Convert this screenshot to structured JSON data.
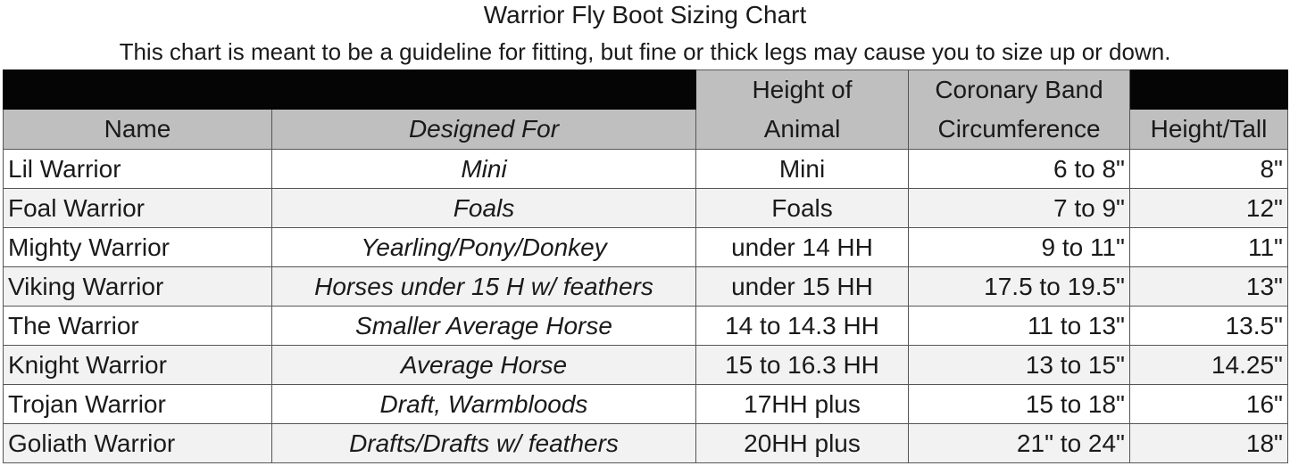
{
  "title": "Warrior Fly Boot Sizing Chart",
  "subtitle": "This chart is meant to be a guideline for fitting, but fine or thick legs may cause you to size up or down.",
  "colors": {
    "header_band": "#050505",
    "header_gray": "#bfbfbf",
    "alt_row": "#f2f2f2"
  },
  "headers": {
    "name": "Name",
    "designed_for": "Designed For",
    "height_of_animal_1": "Height of",
    "height_of_animal_2": "Animal",
    "coronary_1": "Coronary Band",
    "coronary_2": "Circumference",
    "height_tall": "Height/Tall"
  },
  "rows": [
    {
      "name": "Lil Warrior",
      "designed_for": "Mini",
      "animal_height": "Mini",
      "coronary": "6 to 8\"",
      "height": "8\""
    },
    {
      "name": "Foal Warrior",
      "designed_for": "Foals",
      "animal_height": "Foals",
      "coronary": "7 to 9\"",
      "height": "12\""
    },
    {
      "name": "Mighty Warrior",
      "designed_for": "Yearling/Pony/Donkey",
      "animal_height": "under 14 HH",
      "coronary": "9 to 11\"",
      "height": "11\""
    },
    {
      "name": "Viking Warrior",
      "designed_for": "Horses under 15 H w/ feathers",
      "animal_height": "under 15 HH",
      "coronary": "17.5 to  19.5\"",
      "height": "13\""
    },
    {
      "name": "The Warrior",
      "designed_for": "Smaller Average Horse",
      "animal_height": "14 to 14.3 HH",
      "coronary": "11 to 13\"",
      "height": "13.5\""
    },
    {
      "name": "Knight Warrior",
      "designed_for": "Average Horse",
      "animal_height": "15 to 16.3 HH",
      "coronary": "13 to 15\"",
      "height": "14.25\""
    },
    {
      "name": "Trojan Warrior",
      "designed_for": "Draft, Warmbloods",
      "animal_height": "17HH plus",
      "coronary": "15 to 18\"",
      "height": "16\""
    },
    {
      "name": "Goliath Warrior",
      "designed_for": "Drafts/Drafts w/ feathers",
      "animal_height": "20HH plus",
      "coronary": "21\" to 24\"",
      "height": "18\""
    }
  ]
}
